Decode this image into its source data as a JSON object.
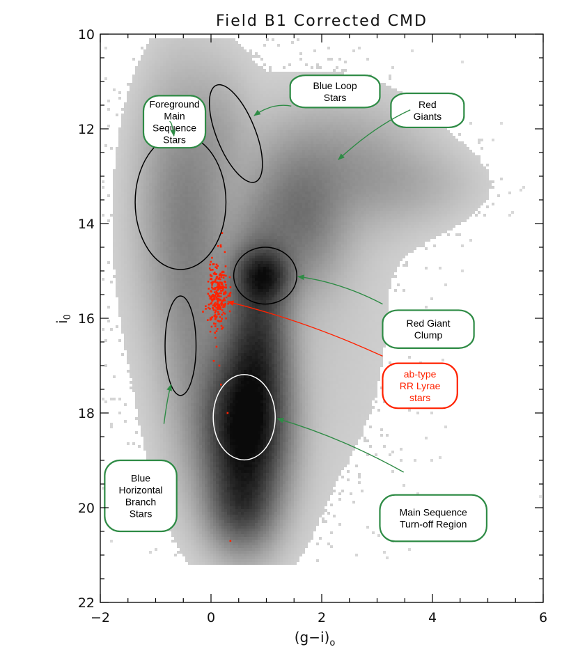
{
  "chart_data": {
    "type": "scatter",
    "title": "Field B1 Corrected CMD",
    "xlabel": "(g−i)",
    "xlabel_subscript": "o",
    "ylabel": "i",
    "ylabel_subscript": "0",
    "xlim": [
      -2,
      6
    ],
    "ylim": [
      22,
      10
    ],
    "y_inverted": true,
    "xticks": [
      -2,
      0,
      2,
      4,
      6
    ],
    "xtick_labels": [
      "−2",
      "0",
      "2",
      "4",
      "6"
    ],
    "yticks": [
      10,
      12,
      14,
      16,
      18,
      20,
      22
    ],
    "ytick_labels": [
      "10",
      "12",
      "14",
      "16",
      "18",
      "20",
      "22"
    ],
    "grid": false,
    "colors": {
      "density": "#808080",
      "rr_lyrae": "#ff2200",
      "green_box": "#2e8b45",
      "red_box": "#ff2200",
      "region_black": "#000000",
      "region_white": "#ffffff"
    },
    "density_components": [
      {
        "name": "main sequence / turn-off",
        "x": 0.6,
        "y": 18.4,
        "sx": 0.45,
        "sy": 1.1,
        "weight": 1.0
      },
      {
        "name": "subgiant / RGB stem",
        "x": 0.85,
        "y": 16.3,
        "sx": 0.35,
        "sy": 1.3,
        "weight": 0.55
      },
      {
        "name": "red giant clump",
        "x": 0.95,
        "y": 15.1,
        "sx": 0.3,
        "sy": 0.35,
        "weight": 0.6
      },
      {
        "name": "red giant branch",
        "x": 1.6,
        "y": 13.9,
        "sx": 0.5,
        "sy": 0.9,
        "weight": 0.25
      },
      {
        "name": "red giants upper",
        "x": 2.4,
        "y": 12.8,
        "sx": 0.9,
        "sy": 0.8,
        "weight": 0.12
      },
      {
        "name": "red giants tip",
        "x": 3.6,
        "y": 13.2,
        "sx": 0.8,
        "sy": 0.5,
        "weight": 0.05
      },
      {
        "name": "foreground main sequence",
        "x": -0.5,
        "y": 13.5,
        "sx": 0.5,
        "sy": 1.6,
        "weight": 0.18
      },
      {
        "name": "blue plume",
        "x": -0.3,
        "y": 16.3,
        "sx": 0.4,
        "sy": 1.8,
        "weight": 0.12
      },
      {
        "name": "blue loop",
        "x": 0.2,
        "y": 12.0,
        "sx": 0.35,
        "sy": 0.8,
        "weight": 0.05
      },
      {
        "name": "deep main sequence",
        "x": 0.55,
        "y": 20.0,
        "sx": 0.35,
        "sy": 0.55,
        "weight": 0.35
      }
    ],
    "rr_lyrae": {
      "center_x": 0.12,
      "center_y": 15.55,
      "spread_x": 0.09,
      "spread_y": 0.35,
      "count": 260,
      "outliers": [
        [
          0.2,
          14.2
        ],
        [
          0.25,
          14.6
        ],
        [
          0.05,
          16.9
        ],
        [
          0.15,
          17.0
        ],
        [
          0.1,
          16.6
        ],
        [
          0.3,
          18.0
        ],
        [
          0.35,
          20.7
        ],
        [
          0.18,
          17.4
        ]
      ]
    },
    "regions": [
      {
        "name": "foreground-main-sequence",
        "cx": -0.55,
        "cy": 13.55,
        "rx": 0.82,
        "ry": 1.42,
        "angle": 0,
        "color": "#000000"
      },
      {
        "name": "blue-loop",
        "cx": 0.45,
        "cy": 12.1,
        "rx": 0.35,
        "ry": 1.1,
        "angle": -22,
        "color": "#000000"
      },
      {
        "name": "red-giant-clump",
        "cx": 0.98,
        "cy": 15.1,
        "rx": 0.57,
        "ry": 0.6,
        "angle": 0,
        "color": "#000000"
      },
      {
        "name": "blue-horizontal-branch",
        "cx": -0.55,
        "cy": 16.58,
        "rx": 0.28,
        "ry": 1.05,
        "angle": 0,
        "color": "#000000"
      },
      {
        "name": "main-sequence-turnoff",
        "cx": 0.6,
        "cy": 18.09,
        "rx": 0.56,
        "ry": 0.9,
        "angle": 0,
        "color": "#ffffff"
      }
    ],
    "annotations": [
      {
        "name": "foreground-main-sequence",
        "lines": [
          "Foreground",
          "Main",
          "Sequence",
          "Stars"
        ],
        "box_x": -1.22,
        "box_y": 11.3,
        "w": 1.12,
        "h": 1.1,
        "color": "#2e8b45",
        "arrow_from": [
          -0.75,
          11.85
        ],
        "arrow_to": [
          -0.67,
          12.15
        ]
      },
      {
        "name": "blue-loop-stars",
        "lines": [
          "Blue Loop",
          "Stars"
        ],
        "box_x": 1.43,
        "box_y": 10.87,
        "w": 1.62,
        "h": 0.68,
        "color": "#2e8b45",
        "arrow_from": [
          1.45,
          11.52
        ],
        "arrow_to": [
          0.78,
          11.72
        ]
      },
      {
        "name": "red-giants",
        "lines": [
          "Red",
          "Giants"
        ],
        "box_x": 3.25,
        "box_y": 11.25,
        "w": 1.32,
        "h": 0.72,
        "color": "#2e8b45",
        "arrow_from": [
          3.6,
          11.6
        ],
        "arrow_to": [
          2.3,
          12.65
        ]
      },
      {
        "name": "red-giant-clump",
        "lines": [
          "Red Giant",
          "Clump"
        ],
        "box_x": 3.1,
        "box_y": 15.83,
        "w": 1.65,
        "h": 0.8,
        "color": "#2e8b45",
        "arrow_from": [
          3.1,
          15.7
        ],
        "arrow_to": [
          1.57,
          15.12
        ]
      },
      {
        "name": "rr-lyrae",
        "lines": [
          "ab-type",
          "RR Lyrae",
          "stars"
        ],
        "box_x": 3.1,
        "box_y": 16.95,
        "w": 1.35,
        "h": 0.95,
        "color": "#ff2200",
        "arrow_from": [
          3.1,
          16.8
        ],
        "arrow_to": [
          0.3,
          15.65
        ]
      },
      {
        "name": "blue-horizontal-branch",
        "lines": [
          "Blue",
          "Horizontal",
          "Branch",
          "Stars"
        ],
        "box_x": -1.92,
        "box_y": 19.0,
        "w": 1.3,
        "h": 1.5,
        "color": "#2e8b45",
        "arrow_from": [
          -0.85,
          18.23
        ],
        "arrow_to": [
          -0.72,
          17.4
        ]
      },
      {
        "name": "main-sequence-turnoff",
        "lines": [
          "Main Sequence",
          "Turn-off Region"
        ],
        "box_x": 3.05,
        "box_y": 19.73,
        "w": 1.93,
        "h": 0.98,
        "color": "#2e8b45",
        "arrow_from": [
          3.48,
          19.25
        ],
        "arrow_to": [
          1.2,
          18.12
        ]
      }
    ]
  }
}
